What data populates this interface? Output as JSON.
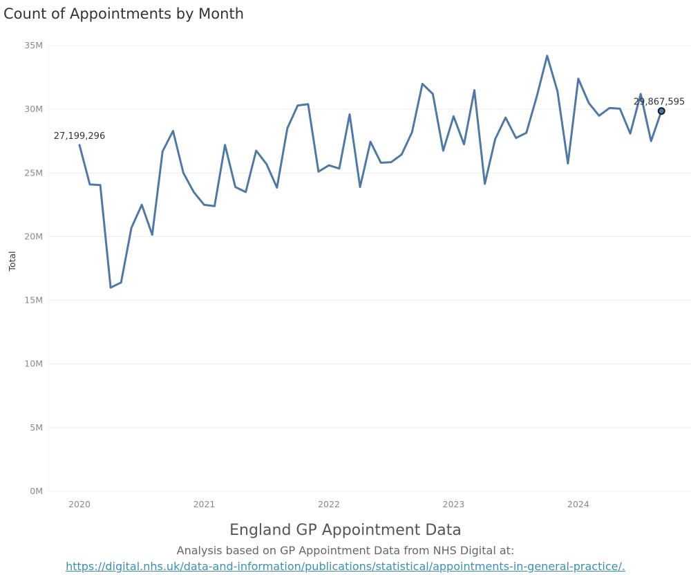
{
  "chart_data": {
    "type": "line",
    "title": "Count of Appointments by Month",
    "ylabel": "Total",
    "xlabel": "",
    "ylim": [
      0,
      35000000
    ],
    "y_ticks": [
      "0M",
      "5M",
      "10M",
      "15M",
      "20M",
      "25M",
      "30M",
      "35M"
    ],
    "y_tick_values": [
      0,
      5000000,
      10000000,
      15000000,
      20000000,
      25000000,
      30000000,
      35000000
    ],
    "x_ticks": [
      "2020",
      "2021",
      "2022",
      "2023",
      "2024"
    ],
    "x_range": [
      "2019-10",
      "2024-11"
    ],
    "grid": true,
    "line_color": "#4e79a7",
    "series": [
      {
        "x": [
          "2020-01",
          "2020-02",
          "2020-03",
          "2020-04",
          "2020-05",
          "2020-06",
          "2020-07",
          "2020-08",
          "2020-09",
          "2020-10",
          "2020-11",
          "2020-12",
          "2021-01",
          "2021-02",
          "2021-03",
          "2021-04",
          "2021-05",
          "2021-06",
          "2021-07",
          "2021-08",
          "2021-09",
          "2021-10",
          "2021-11",
          "2021-12",
          "2022-01",
          "2022-02",
          "2022-03",
          "2022-04",
          "2022-05",
          "2022-06",
          "2022-07",
          "2022-08",
          "2022-09",
          "2022-10",
          "2022-11",
          "2022-12",
          "2023-01",
          "2023-02",
          "2023-03",
          "2023-04",
          "2023-05",
          "2023-06",
          "2023-07",
          "2023-08",
          "2023-09",
          "2023-10",
          "2023-11",
          "2023-12",
          "2024-01",
          "2024-02",
          "2024-03",
          "2024-04",
          "2024-05",
          "2024-06",
          "2024-07",
          "2024-08",
          "2024-09"
        ],
        "values": [
          27199296,
          24100000,
          24050000,
          16000000,
          16400000,
          20700000,
          22500000,
          20150000,
          26700000,
          28300000,
          25000000,
          23500000,
          22500000,
          22400000,
          27200000,
          23900000,
          23500000,
          26750000,
          25700000,
          23850000,
          28500000,
          30300000,
          30400000,
          25100000,
          25600000,
          25350000,
          29600000,
          23900000,
          27450000,
          25800000,
          25850000,
          26450000,
          28200000,
          32000000,
          31200000,
          26750000,
          29450000,
          27250000,
          31500000,
          24150000,
          27650000,
          29350000,
          27750000,
          28150000,
          31000000,
          34200000,
          31400000,
          25750000,
          32400000,
          30500000,
          29500000,
          30100000,
          30050000,
          28100000,
          31200000,
          27500000,
          29867595
        ]
      }
    ],
    "annotations": [
      {
        "x": "2020-01",
        "label": "27,199,296"
      },
      {
        "x": "2024-09",
        "label": "29,867,595"
      }
    ]
  },
  "footer": {
    "title": "England GP Appointment Data",
    "subtitle": "Analysis based on GP Appointment Data from NHS Digital at:",
    "link": "https://digital.nhs.uk/data-and-information/publications/statistical/appointments-in-general-practice/."
  }
}
